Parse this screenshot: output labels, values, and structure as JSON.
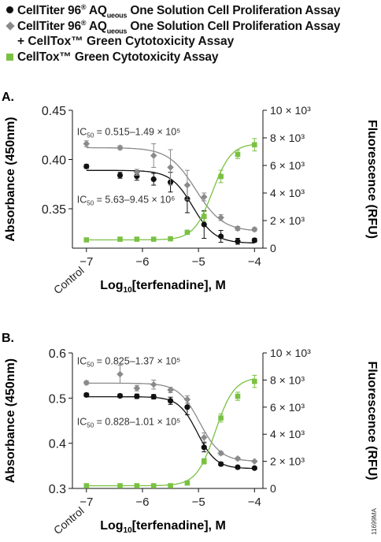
{
  "legend": {
    "s1_prefix": "CellTiter 96",
    "s1_reg": "®",
    "s1_aq": " AQ",
    "s1_sub": "ueous",
    "s1_suffix": " One Solution Cell Proliferation Assay",
    "s2_prefix": "CellTiter 96",
    "s2_reg": "®",
    "s2_aq": " AQ",
    "s2_sub": "ueous",
    "s2_suffix": " One Solution Cell Proliferation Assay",
    "s2_line2": "+ CellTox™ Green Cytotoxicity Assay",
    "s3": "CellTox™ Green Cytotoxicity Assay"
  },
  "figure_id": "11699MA",
  "colors": {
    "black": "#111111",
    "gray": "#8a8a8c",
    "green": "#7ac143"
  },
  "chart_data": [
    {
      "type": "line",
      "panel_label": "A.",
      "xlabel": "Log10[terfenadine], M",
      "ylabel_left": "Absorbance (450nm)",
      "ylabel_right": "Fluorescence (RFU)",
      "xlim": [
        -7.25,
        -3.85
      ],
      "x_ticks": [
        -7,
        -6,
        -5,
        -4
      ],
      "x_tick_labels": [
        "−7",
        "−6",
        "−5",
        "−4"
      ],
      "control_label": "Control",
      "ylim_left": [
        0.31,
        0.45
      ],
      "y_ticks_left": [
        0.35,
        0.4,
        0.45
      ],
      "y_tick_labels_left": [
        "0.35",
        "0.40",
        "0.45"
      ],
      "ylim_right": [
        0,
        10000
      ],
      "y_ticks_right": [
        0,
        2000,
        4000,
        6000,
        8000,
        10000
      ],
      "y_tick_labels_right": [
        "0",
        "2 × 10³",
        "4 × 10³",
        "6 × 10³",
        "8 × 10³",
        "10 × 10³"
      ],
      "annotations": [
        {
          "series": "gray",
          "text": "IC50 = 0.515–1.49 × 10⁵",
          "x": -7.0,
          "y": 0.425
        },
        {
          "series": "black",
          "text": "IC50 = 5.63–9.45 × 10⁶",
          "x": -7.0,
          "y": 0.356
        }
      ],
      "series": [
        {
          "name": "CellTiter 96® AQueous One Solution Cell Proliferation Assay",
          "axis": "left",
          "color": "#111111",
          "marker": "circle",
          "points": [
            {
              "x": -7.0,
              "y": 0.393,
              "err": 0.002
            },
            {
              "x": -6.4,
              "y": 0.384,
              "err": 0.003
            },
            {
              "x": -6.1,
              "y": 0.383,
              "err": 0.004
            },
            {
              "x": -5.8,
              "y": 0.38,
              "err": 0.006
            },
            {
              "x": -5.5,
              "y": 0.377,
              "err": 0.01
            },
            {
              "x": -5.2,
              "y": 0.36,
              "err": 0.014
            },
            {
              "x": -4.9,
              "y": 0.334,
              "err": 0.014
            },
            {
              "x": -4.6,
              "y": 0.322,
              "err": 0.006
            },
            {
              "x": -4.3,
              "y": 0.317,
              "err": 0.003
            },
            {
              "x": -4.0,
              "y": 0.318,
              "err": 0.002
            }
          ],
          "curve": {
            "top": 0.389,
            "bottom": 0.315,
            "logic50": -5.1,
            "hill": 2.2
          }
        },
        {
          "name": "CellTiter 96® AQueous One Solution Cell Proliferation Assay + CellTox™ Green Cytotoxicity Assay",
          "axis": "left",
          "color": "#8a8a8c",
          "marker": "diamond",
          "points": [
            {
              "x": -7.0,
              "y": 0.416,
              "err": 0.003
            },
            {
              "x": -6.4,
              "y": 0.412,
              "err": 0.002
            },
            {
              "x": -6.1,
              "y": 0.387,
              "err": 0.003
            },
            {
              "x": -5.8,
              "y": 0.404,
              "err": 0.012
            },
            {
              "x": -5.5,
              "y": 0.392,
              "err": 0.018
            },
            {
              "x": -5.2,
              "y": 0.374,
              "err": 0.015
            },
            {
              "x": -4.9,
              "y": 0.362,
              "err": 0.004
            },
            {
              "x": -4.6,
              "y": 0.341,
              "err": 0.003
            },
            {
              "x": -4.3,
              "y": 0.33,
              "err": 0.002
            },
            {
              "x": -4.0,
              "y": 0.329,
              "err": 0.002
            }
          ],
          "curve": {
            "top": 0.412,
            "bottom": 0.327,
            "logic50": -5.05,
            "hill": 1.8
          }
        },
        {
          "name": "CellTox™ Green Cytotoxicity Assay",
          "axis": "right",
          "color": "#7ac143",
          "marker": "square",
          "points": [
            {
              "x": -7.0,
              "y": 600,
              "err": 0
            },
            {
              "x": -6.4,
              "y": 650,
              "err": 0
            },
            {
              "x": -6.1,
              "y": 650,
              "err": 0
            },
            {
              "x": -5.8,
              "y": 650,
              "err": 0
            },
            {
              "x": -5.5,
              "y": 680,
              "err": 0
            },
            {
              "x": -5.2,
              "y": 1150,
              "err": 150
            },
            {
              "x": -4.9,
              "y": 2300,
              "err": 350
            },
            {
              "x": -4.6,
              "y": 5200,
              "err": 450
            },
            {
              "x": -4.3,
              "y": 6800,
              "err": 300
            },
            {
              "x": -4.0,
              "y": 7500,
              "err": 450
            }
          ],
          "curve": {
            "top": 7600,
            "bottom": 600,
            "logic50": -4.75,
            "hill": 2.6,
            "rising": true
          }
        }
      ]
    },
    {
      "type": "line",
      "panel_label": "B.",
      "xlabel": "Log10[terfenadine], M",
      "ylabel_left": "Absorbance (450nm)",
      "ylabel_right": "Fluorescence (RFU)",
      "xlim": [
        -7.25,
        -3.85
      ],
      "x_ticks": [
        -7,
        -6,
        -5,
        -4
      ],
      "x_tick_labels": [
        "−7",
        "−6",
        "−5",
        "−4"
      ],
      "control_label": "Control",
      "ylim_left": [
        0.3,
        0.6
      ],
      "y_ticks_left": [
        0.3,
        0.4,
        0.5,
        0.6
      ],
      "y_tick_labels_left": [
        "0.3",
        "0.4",
        "0.5",
        "0.6"
      ],
      "ylim_right": [
        0,
        10000
      ],
      "y_ticks_right": [
        0,
        2000,
        4000,
        6000,
        8000,
        10000
      ],
      "y_tick_labels_right": [
        "0",
        "2 × 10³",
        "4 × 10³",
        "6 × 10³",
        "8 × 10³",
        "10 × 10³"
      ],
      "annotations": [
        {
          "series": "gray",
          "text": "IC50 = 0.825–1.37 × 10⁵",
          "x": -7.0,
          "y": 0.575
        },
        {
          "series": "black",
          "text": "IC50 = 0.828–1.01 × 10⁵",
          "x": -7.0,
          "y": 0.44
        }
      ],
      "series": [
        {
          "name": "CellTiter 96® AQueous One Solution Cell Proliferation Assay",
          "axis": "left",
          "color": "#111111",
          "marker": "circle",
          "points": [
            {
              "x": -7.0,
              "y": 0.507,
              "err": 0.004
            },
            {
              "x": -6.4,
              "y": 0.505,
              "err": 0.004
            },
            {
              "x": -6.1,
              "y": 0.504,
              "err": 0.005
            },
            {
              "x": -5.8,
              "y": 0.503,
              "err": 0.005
            },
            {
              "x": -5.5,
              "y": 0.494,
              "err": 0.008
            },
            {
              "x": -5.2,
              "y": 0.48,
              "err": 0.017
            },
            {
              "x": -4.9,
              "y": 0.391,
              "err": 0.01
            },
            {
              "x": -4.6,
              "y": 0.354,
              "err": 0.004
            },
            {
              "x": -4.3,
              "y": 0.347,
              "err": 0.003
            },
            {
              "x": -4.0,
              "y": 0.345,
              "err": 0.002
            }
          ],
          "curve": {
            "top": 0.503,
            "bottom": 0.344,
            "logic50": -5.02,
            "hill": 2.6
          }
        },
        {
          "name": "CellTiter 96® AQueous One Solution Cell Proliferation Assay + CellTox™ Green Cytotoxicity Assay",
          "axis": "left",
          "color": "#8a8a8c",
          "marker": "diamond",
          "points": [
            {
              "x": -7.0,
              "y": 0.534,
              "err": 0.004
            },
            {
              "x": -6.4,
              "y": 0.553,
              "err": 0.02
            },
            {
              "x": -6.1,
              "y": 0.522,
              "err": 0.006
            },
            {
              "x": -5.8,
              "y": 0.53,
              "err": 0.01
            },
            {
              "x": -5.5,
              "y": 0.518,
              "err": 0.006
            },
            {
              "x": -5.2,
              "y": 0.497,
              "err": 0.008
            },
            {
              "x": -4.9,
              "y": 0.413,
              "err": 0.01
            },
            {
              "x": -4.6,
              "y": 0.378,
              "err": 0.004
            },
            {
              "x": -4.3,
              "y": 0.366,
              "err": 0.003
            },
            {
              "x": -4.0,
              "y": 0.36,
              "err": 0.002
            }
          ],
          "curve": {
            "top": 0.533,
            "bottom": 0.36,
            "logic50": -4.98,
            "hill": 2.3
          }
        },
        {
          "name": "CellTox™ Green Cytotoxicity Assay",
          "axis": "right",
          "color": "#7ac143",
          "marker": "square",
          "points": [
            {
              "x": -7.0,
              "y": 200,
              "err": 0
            },
            {
              "x": -6.4,
              "y": 200,
              "err": 0
            },
            {
              "x": -6.1,
              "y": 200,
              "err": 0
            },
            {
              "x": -5.8,
              "y": 200,
              "err": 0
            },
            {
              "x": -5.5,
              "y": 200,
              "err": 0
            },
            {
              "x": -5.2,
              "y": 400,
              "err": 80
            },
            {
              "x": -4.9,
              "y": 2000,
              "err": 200
            },
            {
              "x": -4.6,
              "y": 5200,
              "err": 300
            },
            {
              "x": -4.3,
              "y": 6800,
              "err": 300
            },
            {
              "x": -4.0,
              "y": 7900,
              "err": 450
            }
          ],
          "curve": {
            "top": 8200,
            "bottom": 200,
            "logic50": -4.7,
            "hill": 2.6,
            "rising": true
          }
        }
      ]
    }
  ]
}
